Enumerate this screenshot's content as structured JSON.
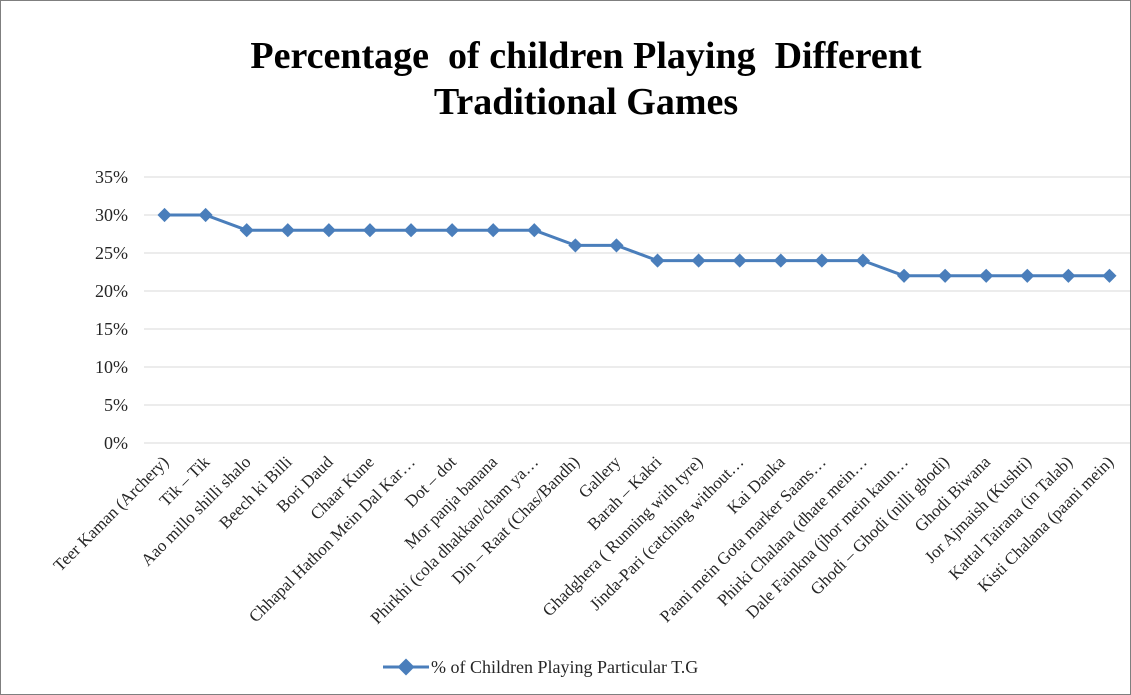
{
  "chart_data": {
    "type": "line",
    "title": [
      "Percentage  of children Playing  Different",
      "Traditional Games"
    ],
    "xlabel": "",
    "ylabel": "",
    "ylim": [
      0,
      35
    ],
    "yticks": [
      "0%",
      "5%",
      "10%",
      "15%",
      "20%",
      "25%",
      "30%",
      "35%"
    ],
    "grid": true,
    "legend_position": "bottom",
    "categories": [
      "Teer Kaman (Archery)",
      "Tik – Tik",
      "Aao millo shilli shalo",
      "Beech ki Billi",
      "Bori Daud",
      "Chaar Kune",
      "Chhapal Hathon Mein Dal Kar…",
      "Dot – dot",
      "Mor panja banana",
      "Phirkhi (cola dhakkan/cham ya…",
      "Din – Raat (Chas/Bandh)",
      "Gallery",
      "Barah – Kakri",
      "Ghadghera ( Running with tyre)",
      "Jinda-Pari (catching without…",
      "Kai Danka",
      "Paani mein Gota marker Saans…",
      "Phirki Chalana (dhate mein…",
      "Dale Fainkna (jhor mein kaun…",
      "Ghodi – Ghodi (nilli ghodi)",
      "Ghodi Biwana",
      "Jor Ajmaish (Kushti)",
      "Kattal Tairana (in Talab)",
      "Kisti Chalana (paani mein)"
    ],
    "series": [
      {
        "name": "% of Children Playing Particular T.G",
        "color": "#4a7ebb",
        "marker": "diamond",
        "values": [
          30,
          30,
          28,
          28,
          28,
          28,
          28,
          28,
          28,
          28,
          26,
          26,
          24,
          24,
          24,
          24,
          24,
          24,
          22,
          22,
          22,
          22,
          22,
          22
        ]
      }
    ]
  }
}
